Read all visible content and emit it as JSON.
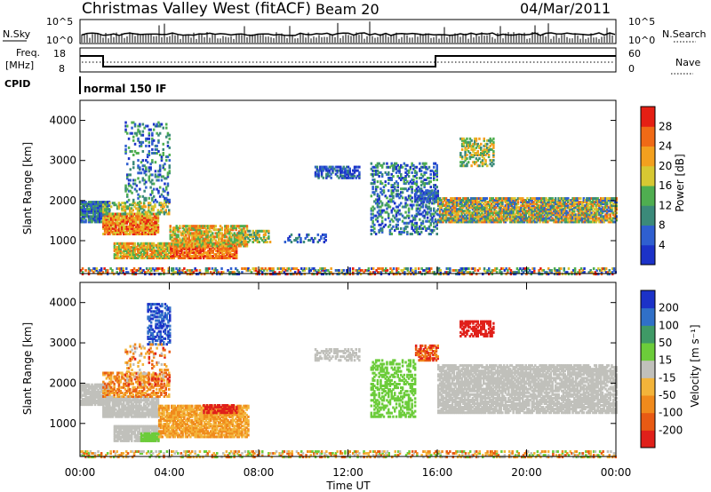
{
  "header": {
    "title": "Christmas Valley West (fitACF)",
    "beam": "Beam 20",
    "date": "04/Mar/2011"
  },
  "summary": {
    "left_labels": {
      "nsky": "N.Sky",
      "freq": "Freq.",
      "freq_unit": "[MHz]",
      "cpid": "CPID"
    },
    "right_labels": {
      "nsearch": "N.Search",
      "nave": "Nave"
    },
    "noise_ticks_left": [
      "10^5",
      "10^0"
    ],
    "noise_ticks_right": [
      "10^5",
      "10^0"
    ],
    "freq_ticks_left": [
      "18",
      "8"
    ],
    "nave_ticks_right": [
      "60",
      "0"
    ],
    "cpid_text": "normal 150 IF"
  },
  "chart_data": [
    {
      "type": "heatmap",
      "name": "power",
      "ylabel": "Slant Range [km]",
      "colorbar_label": "Power [dB]",
      "colorbar_ticks": [
        "4",
        "8",
        "12",
        "16",
        "20",
        "24",
        "28"
      ],
      "colors": [
        "#1c32c8",
        "#2f5fd0",
        "#3b8a7a",
        "#4fae50",
        "#d7c832",
        "#f3a01e",
        "#f06a16",
        "#e51f14"
      ],
      "yticks": [
        1000,
        2000,
        3000,
        4000
      ],
      "ylim": [
        180,
        4500
      ],
      "xlim_hours": [
        0,
        24
      ],
      "grid": false
    },
    {
      "type": "heatmap",
      "name": "velocity",
      "ylabel": "Slant Range [km]",
      "colorbar_label": "Velocity [m s⁻¹]",
      "colorbar_ticks": [
        "200",
        "100",
        "50",
        "15",
        "-15",
        "-50",
        "-100",
        "-200"
      ],
      "colors": [
        "#1c32c8",
        "#3070c8",
        "#3f9a66",
        "#6ccc3a",
        "#c0c0bb",
        "#f3b43a",
        "#f08a1c",
        "#e85a14",
        "#e0201a"
      ],
      "yticks": [
        1000,
        2000,
        3000,
        4000
      ],
      "ylim": [
        180,
        4500
      ],
      "xlim_hours": [
        0,
        24
      ],
      "xticks": [
        "00:00",
        "04:00",
        "08:00",
        "12:00",
        "16:00",
        "20:00",
        "00:00"
      ],
      "xlabel": "Time UT",
      "grid": false
    }
  ]
}
